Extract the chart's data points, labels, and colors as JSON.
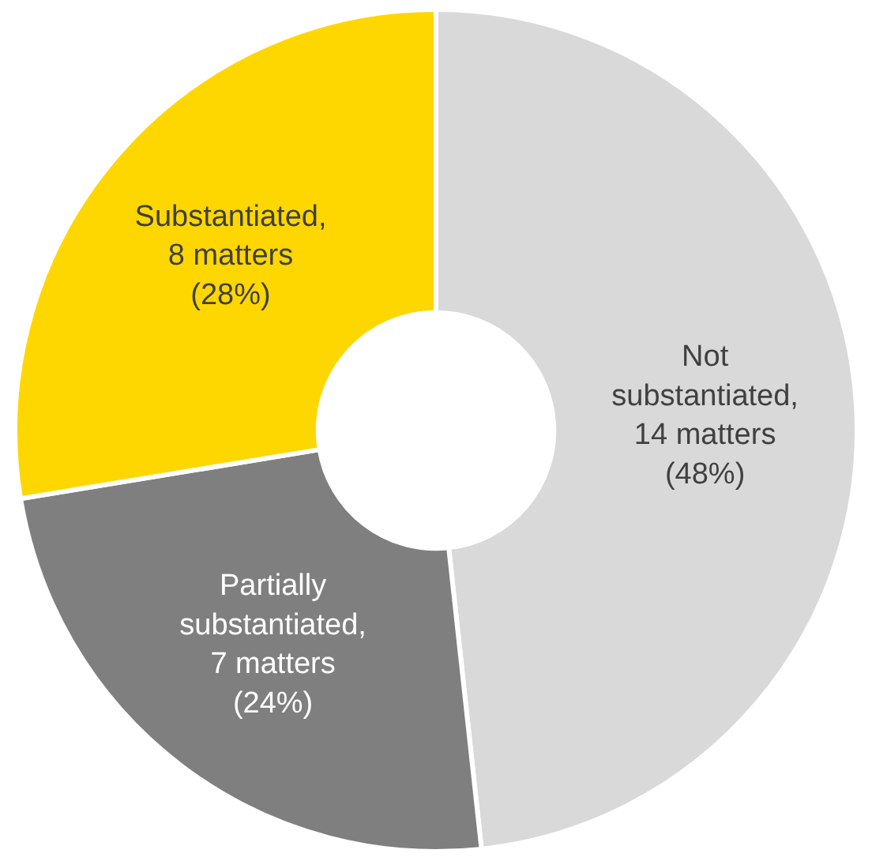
{
  "chart_data": {
    "type": "donut",
    "categories": [
      "Not substantiated, 14 matters (48%)",
      "Partially substantiated, 7 matters (24%)",
      "Substantiated, 8 matters (28%)"
    ],
    "values": [
      14,
      7,
      8
    ],
    "colors": [
      "#d9d9d9",
      "#7f7f7f",
      "#ffd700"
    ],
    "legend": false
  }
}
